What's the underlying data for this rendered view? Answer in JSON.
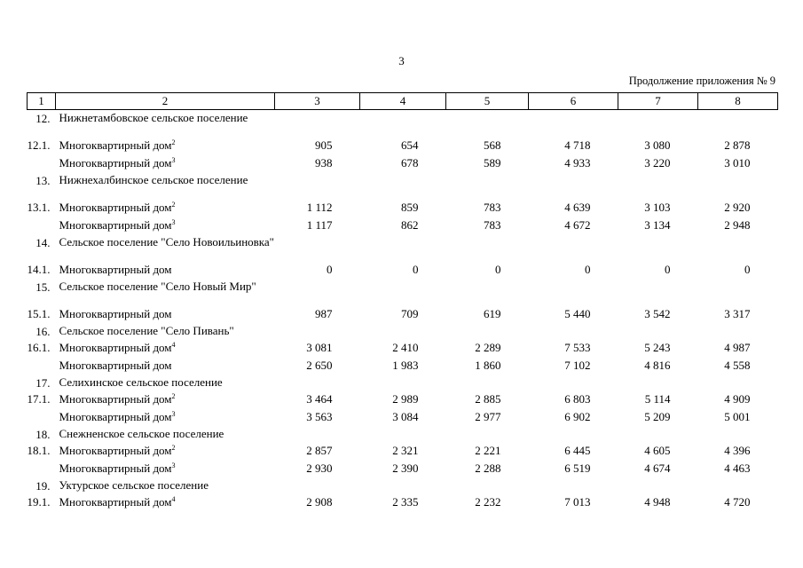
{
  "page_number": "3",
  "appendix_note": "Продолжение приложения № 9",
  "columns": [
    "1",
    "2",
    "3",
    "4",
    "5",
    "6",
    "7",
    "8"
  ],
  "rows": [
    {
      "type": "section",
      "num": "12.",
      "name": "Нижнетамбовское сельское поселение"
    },
    {
      "type": "item",
      "num": "12.1.",
      "name": "Многоквартирный дом",
      "sup": "2",
      "values": [
        "905",
        "654",
        "568",
        "4 718",
        "3 080",
        "2 878"
      ]
    },
    {
      "type": "item",
      "num": "",
      "name": "Многоквартирный дом",
      "sup": "3",
      "values": [
        "938",
        "678",
        "589",
        "4 933",
        "3 220",
        "3 010"
      ]
    },
    {
      "type": "section",
      "num": "13.",
      "name": "Нижнехалбинское сельское поселение"
    },
    {
      "type": "item",
      "num": "13.1.",
      "name": "Многоквартирный дом",
      "sup": "2",
      "values": [
        "1 112",
        "859",
        "783",
        "4 639",
        "3 103",
        "2 920"
      ]
    },
    {
      "type": "item",
      "num": "",
      "name": "Многоквартирный дом",
      "sup": "3",
      "values": [
        "1 117",
        "862",
        "783",
        "4 672",
        "3 134",
        "2 948"
      ]
    },
    {
      "type": "section",
      "num": "14.",
      "name": "Сельское поселение \"Село Новоильиновка\""
    },
    {
      "type": "item",
      "num": "14.1.",
      "name": "Многоквартирный дом",
      "sup": "",
      "values": [
        "0",
        "0",
        "0",
        "0",
        "0",
        "0"
      ]
    },
    {
      "type": "section",
      "num": "15.",
      "name": "Сельское поселение \"Село Новый Мир\""
    },
    {
      "type": "item",
      "num": "15.1.",
      "name": "Многоквартирный дом",
      "sup": "",
      "values": [
        "987",
        "709",
        "619",
        "5 440",
        "3 542",
        "3 317"
      ]
    },
    {
      "type": "section",
      "num": "16.",
      "name": "Сельское поселение \"Село Пивань\""
    },
    {
      "type": "item",
      "num": "16.1.",
      "name": "Многоквартирный дом",
      "sup": "4",
      "values": [
        "3 081",
        "2 410",
        "2 289",
        "7 533",
        "5 243",
        "4 987"
      ]
    },
    {
      "type": "item",
      "num": "",
      "name": "Многоквартирный дом",
      "sup": "",
      "values": [
        "2 650",
        "1 983",
        "1 860",
        "7 102",
        "4 816",
        "4 558"
      ]
    },
    {
      "type": "section",
      "num": "17.",
      "name": "Селихинское сельское поселение"
    },
    {
      "type": "item",
      "num": "17.1.",
      "name": "Многоквартирный дом",
      "sup": "2",
      "values": [
        "3 464",
        "2 989",
        "2 885",
        "6 803",
        "5 114",
        "4 909"
      ]
    },
    {
      "type": "item",
      "num": "",
      "name": "Многоквартирный дом",
      "sup": "3",
      "values": [
        "3 563",
        "3 084",
        "2 977",
        "6 902",
        "5 209",
        "5 001"
      ]
    },
    {
      "type": "section",
      "num": "18.",
      "name": "Снежненское сельское поселение"
    },
    {
      "type": "item",
      "num": "18.1.",
      "name": "Многоквартирный дом",
      "sup": "2",
      "values": [
        "2 857",
        "2 321",
        "2 221",
        "6 445",
        "4 605",
        "4 396"
      ]
    },
    {
      "type": "item",
      "num": "",
      "name": "Многоквартирный дом",
      "sup": "3",
      "values": [
        "2 930",
        "2 390",
        "2 288",
        "6 519",
        "4 674",
        "4 463"
      ]
    },
    {
      "type": "section",
      "num": "19.",
      "name": "Уктурское сельское поселение"
    },
    {
      "type": "item",
      "num": "19.1.",
      "name": "Многоквартирный дом",
      "sup": "4",
      "values": [
        "2 908",
        "2 335",
        "2 232",
        "7 013",
        "4 948",
        "4 720"
      ]
    }
  ]
}
